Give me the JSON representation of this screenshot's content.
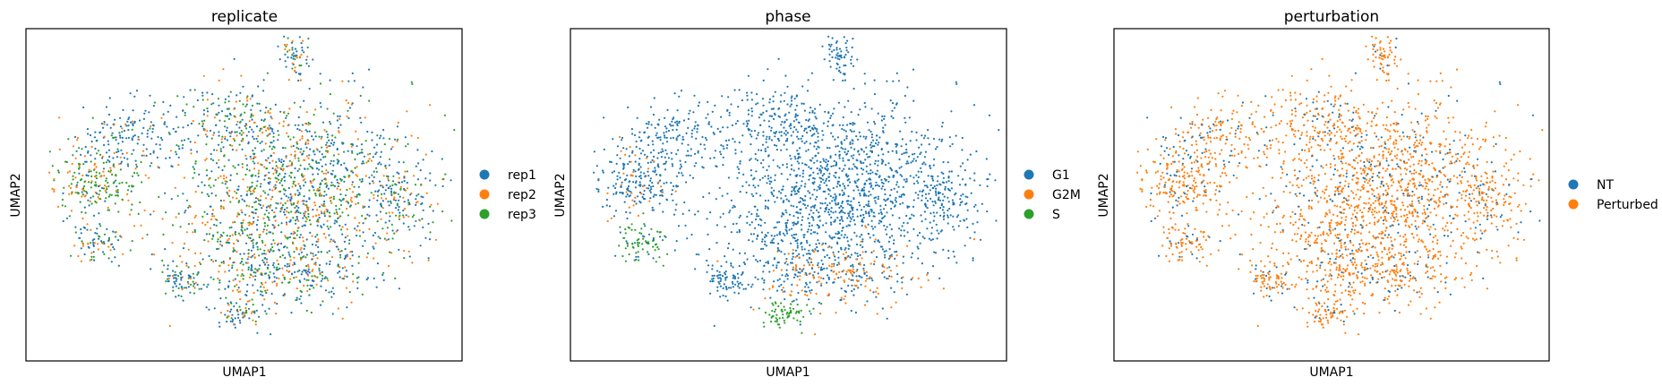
{
  "figure": {
    "background": "#ffffff"
  },
  "chart_data": [
    {
      "type": "scatter",
      "title": "replicate",
      "xlabel": "UMAP1",
      "ylabel": "UMAP2",
      "grid": false,
      "legend_placement": "right",
      "legend": [
        {
          "label": "rep1",
          "color": "#1f77b4"
        },
        {
          "label": "rep2",
          "color": "#ff7f0e"
        },
        {
          "label": "rep3",
          "color": "#2ca02c"
        }
      ]
    },
    {
      "type": "scatter",
      "title": "phase",
      "xlabel": "UMAP1",
      "ylabel": "UMAP2",
      "grid": false,
      "legend_placement": "right",
      "legend": [
        {
          "label": "G1",
          "color": "#1f77b4"
        },
        {
          "label": "G2M",
          "color": "#ff7f0e"
        },
        {
          "label": "S",
          "color": "#2ca02c"
        }
      ]
    },
    {
      "type": "scatter",
      "title": "perturbation",
      "xlabel": "UMAP1",
      "ylabel": "UMAP2",
      "grid": false,
      "legend_placement": "right",
      "legend": [
        {
          "label": "NT",
          "color": "#1f77b4"
        },
        {
          "label": "Perturbed",
          "color": "#ff7f0e"
        }
      ]
    }
  ]
}
